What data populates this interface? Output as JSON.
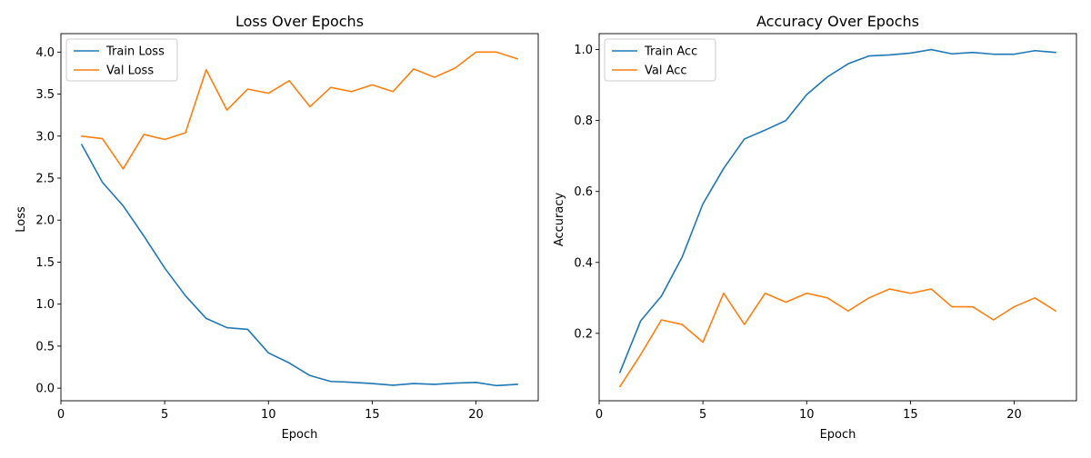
{
  "chart_data": [
    {
      "type": "line",
      "title": "Loss Over Epochs",
      "xlabel": "Epoch",
      "ylabel": "Loss",
      "xlim": [
        0,
        23
      ],
      "ylim": [
        -0.15,
        4.22
      ],
      "xticks": [
        0,
        5,
        10,
        15,
        20
      ],
      "yticks": [
        0.0,
        0.5,
        1.0,
        1.5,
        2.0,
        2.5,
        3.0,
        3.5,
        4.0
      ],
      "ytick_format": 1,
      "grid": false,
      "legend": "top-left",
      "x": [
        1,
        2,
        3,
        4,
        5,
        6,
        7,
        8,
        9,
        10,
        11,
        12,
        13,
        14,
        15,
        16,
        17,
        18,
        19,
        20,
        21,
        22
      ],
      "series": [
        {
          "name": "Train Loss",
          "color": "#1f77b4",
          "values": [
            2.9,
            2.45,
            2.17,
            1.81,
            1.43,
            1.1,
            0.83,
            0.72,
            0.7,
            0.42,
            0.3,
            0.15,
            0.08,
            0.07,
            0.055,
            0.035,
            0.055,
            0.045,
            0.06,
            0.068,
            0.03,
            0.045
          ]
        },
        {
          "name": "Val Loss",
          "color": "#ff7f0e",
          "values": [
            3.0,
            2.97,
            2.61,
            3.02,
            2.96,
            3.04,
            3.79,
            3.31,
            3.56,
            3.51,
            3.66,
            3.35,
            3.58,
            3.53,
            3.61,
            3.53,
            3.8,
            3.7,
            3.81,
            4.0,
            4.0,
            3.92
          ]
        }
      ]
    },
    {
      "type": "line",
      "title": "Accuracy Over Epochs",
      "xlabel": "Epoch",
      "ylabel": "Accuracy",
      "xlim": [
        0,
        23
      ],
      "ylim": [
        0.01,
        1.045
      ],
      "xticks": [
        0,
        5,
        10,
        15,
        20
      ],
      "yticks": [
        0.2,
        0.4,
        0.6,
        0.8,
        1.0
      ],
      "ytick_format": 1,
      "grid": false,
      "legend": "top-left",
      "x": [
        1,
        2,
        3,
        4,
        5,
        6,
        7,
        8,
        9,
        10,
        11,
        12,
        13,
        14,
        15,
        16,
        17,
        18,
        19,
        20,
        21,
        22
      ],
      "series": [
        {
          "name": "Train Acc",
          "color": "#1f77b4",
          "values": [
            0.09,
            0.235,
            0.305,
            0.415,
            0.565,
            0.665,
            0.748,
            0.773,
            0.8,
            0.873,
            0.923,
            0.96,
            0.982,
            0.985,
            0.99,
            1.0,
            0.988,
            0.992,
            0.987,
            0.987,
            0.997,
            0.992
          ]
        },
        {
          "name": "Val Acc",
          "color": "#ff7f0e",
          "values": [
            0.05,
            0.14,
            0.238,
            0.225,
            0.175,
            0.313,
            0.225,
            0.313,
            0.288,
            0.313,
            0.3,
            0.263,
            0.3,
            0.325,
            0.313,
            0.325,
            0.275,
            0.275,
            0.238,
            0.275,
            0.3,
            0.263
          ]
        }
      ]
    }
  ]
}
